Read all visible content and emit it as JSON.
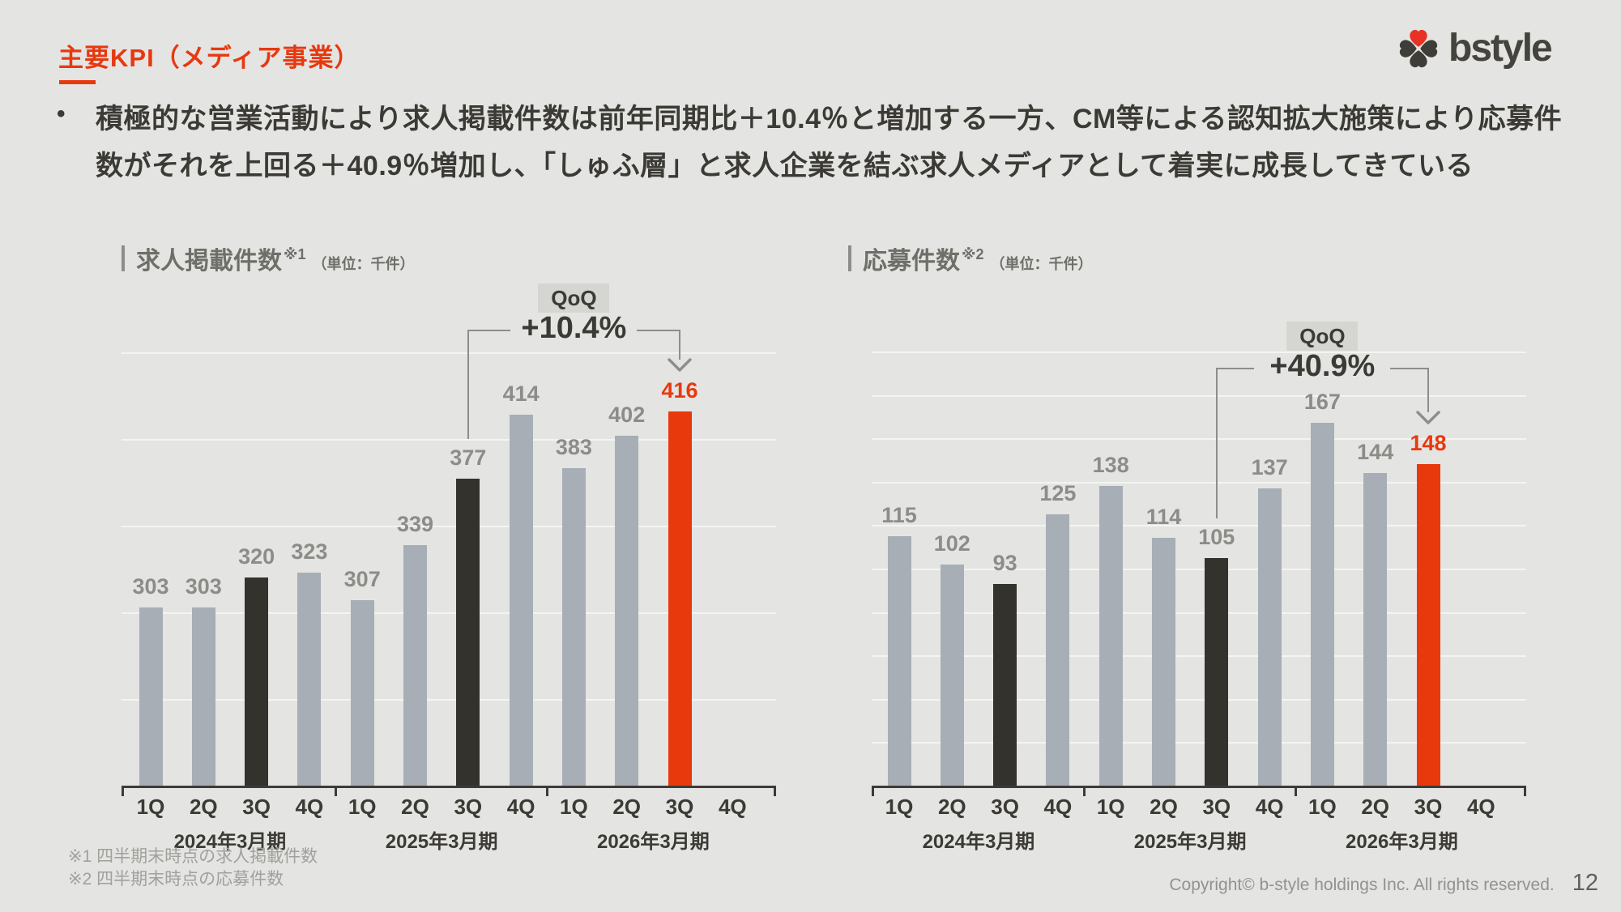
{
  "page": {
    "title": "主要KPI（メディア事業）",
    "bullet": "•",
    "lead_text": "積極的な営業活動により求人掲載件数は前年同期比＋10.4％と増加する一方、CM等による認知拡大施策により応募件数がそれを上回る＋40.9％増加し、「しゅふ層」と求人企業を結ぶ求人メディアとして着実に成長してきている",
    "footnotes": [
      "※1 四半期末時点の求人掲載件数",
      "※2 四半期末時点の応募件数"
    ],
    "copyright": "Copyright© b-style holdings Inc. All rights reserved.",
    "page_number": "12",
    "logo_text": "bstyle"
  },
  "colors": {
    "background": "#e4e4e2",
    "accent": "#e8380f",
    "bar_gray": "#a8aeb5",
    "bar_dark": "#34322d",
    "bar_red": "#e8390d",
    "text_dark": "#3b3a35",
    "label_gray": "#8c8c88",
    "line_gray": "#8d8d89"
  },
  "chart_data": [
    {
      "type": "bar",
      "title": "求人掲載件数",
      "title_sup": "※1",
      "unit_label": "（単位：千件）",
      "categories": [
        "1Q",
        "2Q",
        "3Q",
        "4Q",
        "1Q",
        "2Q",
        "3Q",
        "4Q",
        "1Q",
        "2Q",
        "3Q",
        "4Q"
      ],
      "year_groups": [
        "2024年3月期",
        "2025年3月期",
        "2026年3月期"
      ],
      "values": [
        303,
        303,
        320,
        323,
        307,
        339,
        377,
        414,
        383,
        402,
        416,
        null
      ],
      "bar_colors": [
        "gray",
        "gray",
        "dark",
        "gray",
        "gray",
        "gray",
        "dark",
        "gray",
        "gray",
        "gray",
        "red",
        null
      ],
      "ylim": [
        200,
        480
      ],
      "grid_step": 50,
      "grid": true,
      "legend": "none",
      "annotation": {
        "badge": "QoQ",
        "pct": "+10.4%",
        "from_index": 6,
        "to_index": 10
      }
    },
    {
      "type": "bar",
      "title": "応募件数",
      "title_sup": "※2",
      "unit_label": "（単位：千件）",
      "categories": [
        "1Q",
        "2Q",
        "3Q",
        "4Q",
        "1Q",
        "2Q",
        "3Q",
        "4Q",
        "1Q",
        "2Q",
        "3Q",
        "4Q"
      ],
      "year_groups": [
        "2024年3月期",
        "2025年3月期",
        "2026年3月期"
      ],
      "values": [
        115,
        102,
        93,
        125,
        138,
        114,
        105,
        137,
        167,
        144,
        148,
        null
      ],
      "bar_colors": [
        "gray",
        "gray",
        "dark",
        "gray",
        "gray",
        "gray",
        "dark",
        "gray",
        "gray",
        "gray",
        "red",
        null
      ],
      "ylim": [
        0,
        210
      ],
      "grid_step": 20,
      "grid": true,
      "legend": "none",
      "annotation": {
        "badge": "QoQ",
        "pct": "+40.9%",
        "from_index": 6,
        "to_index": 10
      }
    }
  ]
}
